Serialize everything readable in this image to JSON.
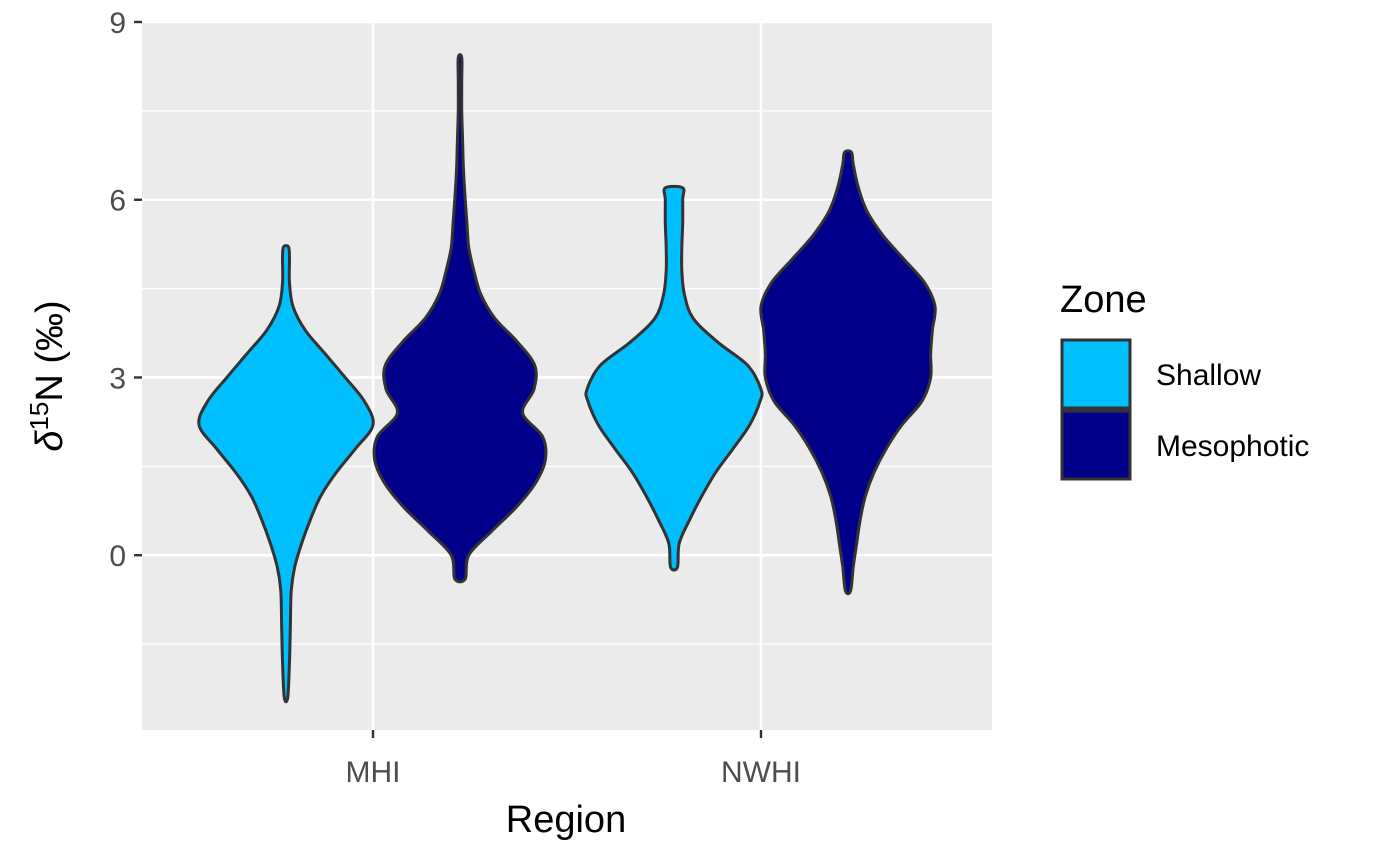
{
  "chart_data": {
    "type": "violin",
    "xlabel": "Region",
    "ylabel": {
      "prefix": "δ",
      "superscript": "15",
      "suffix": "N (‰)"
    },
    "categories": [
      "MHI",
      "NWHI"
    ],
    "yticks": [
      "0",
      "3",
      "6",
      "9"
    ],
    "ylim": [
      -2.95,
      9
    ],
    "grid": true,
    "legend": {
      "title": "Zone",
      "position": "right",
      "entries": [
        {
          "label": "Shallow",
          "color": "#00bfff"
        },
        {
          "label": "Mesophotic",
          "color": "#00008b"
        }
      ]
    },
    "series": [
      {
        "name": "Shallow",
        "color": "#00bfff",
        "violins": [
          {
            "category": "MHI",
            "min": -2.4,
            "max": 5.2,
            "profile": [
              [
                -2.4,
                0.02
              ],
              [
                -1.8,
                0.04
              ],
              [
                -1.2,
                0.05
              ],
              [
                -0.6,
                0.06
              ],
              [
                -0.2,
                0.1
              ],
              [
                0.2,
                0.18
              ],
              [
                0.6,
                0.28
              ],
              [
                1.0,
                0.4
              ],
              [
                1.4,
                0.58
              ],
              [
                1.8,
                0.8
              ],
              [
                2.2,
                1.0
              ],
              [
                2.6,
                0.9
              ],
              [
                3.0,
                0.68
              ],
              [
                3.4,
                0.45
              ],
              [
                3.8,
                0.22
              ],
              [
                4.2,
                0.08
              ],
              [
                4.6,
                0.04
              ],
              [
                5.0,
                0.04
              ],
              [
                5.2,
                0.03
              ]
            ]
          },
          {
            "category": "NWHI",
            "min": -0.2,
            "max": 6.2,
            "profile": [
              [
                -0.2,
                0.04
              ],
              [
                0.2,
                0.06
              ],
              [
                0.6,
                0.18
              ],
              [
                1.0,
                0.32
              ],
              [
                1.4,
                0.48
              ],
              [
                1.8,
                0.68
              ],
              [
                2.2,
                0.87
              ],
              [
                2.6,
                0.99
              ],
              [
                2.8,
                1.0
              ],
              [
                3.2,
                0.85
              ],
              [
                3.6,
                0.5
              ],
              [
                4.0,
                0.22
              ],
              [
                4.4,
                0.12
              ],
              [
                4.8,
                0.09
              ],
              [
                5.2,
                0.09
              ],
              [
                5.6,
                0.1
              ],
              [
                6.0,
                0.1
              ],
              [
                6.2,
                0.1
              ]
            ]
          }
        ]
      },
      {
        "name": "Mesophotic",
        "color": "#00008b",
        "violins": [
          {
            "category": "MHI",
            "min": -0.4,
            "max": 8.4,
            "profile": [
              [
                -0.4,
                0.06
              ],
              [
                0.0,
                0.1
              ],
              [
                0.4,
                0.36
              ],
              [
                0.8,
                0.64
              ],
              [
                1.2,
                0.86
              ],
              [
                1.6,
                0.98
              ],
              [
                2.0,
                0.95
              ],
              [
                2.4,
                0.72
              ],
              [
                2.8,
                0.85
              ],
              [
                3.2,
                0.86
              ],
              [
                3.6,
                0.66
              ],
              [
                4.0,
                0.4
              ],
              [
                4.4,
                0.24
              ],
              [
                4.8,
                0.16
              ],
              [
                5.2,
                0.1
              ],
              [
                5.6,
                0.08
              ],
              [
                6.0,
                0.06
              ],
              [
                6.5,
                0.04
              ],
              [
                7.0,
                0.03
              ],
              [
                7.5,
                0.02
              ],
              [
                8.0,
                0.02
              ],
              [
                8.4,
                0.02
              ]
            ]
          },
          {
            "category": "NWHI",
            "min": -0.6,
            "max": 6.8,
            "profile": [
              [
                -0.6,
                0.03
              ],
              [
                -0.2,
                0.06
              ],
              [
                0.2,
                0.1
              ],
              [
                0.6,
                0.14
              ],
              [
                1.0,
                0.2
              ],
              [
                1.4,
                0.3
              ],
              [
                1.8,
                0.44
              ],
              [
                2.2,
                0.62
              ],
              [
                2.6,
                0.85
              ],
              [
                3.0,
                0.95
              ],
              [
                3.4,
                0.95
              ],
              [
                3.8,
                0.97
              ],
              [
                4.2,
                1.0
              ],
              [
                4.6,
                0.88
              ],
              [
                5.0,
                0.64
              ],
              [
                5.4,
                0.4
              ],
              [
                5.8,
                0.22
              ],
              [
                6.2,
                0.12
              ],
              [
                6.6,
                0.06
              ],
              [
                6.8,
                0.04
              ]
            ]
          }
        ]
      }
    ]
  }
}
